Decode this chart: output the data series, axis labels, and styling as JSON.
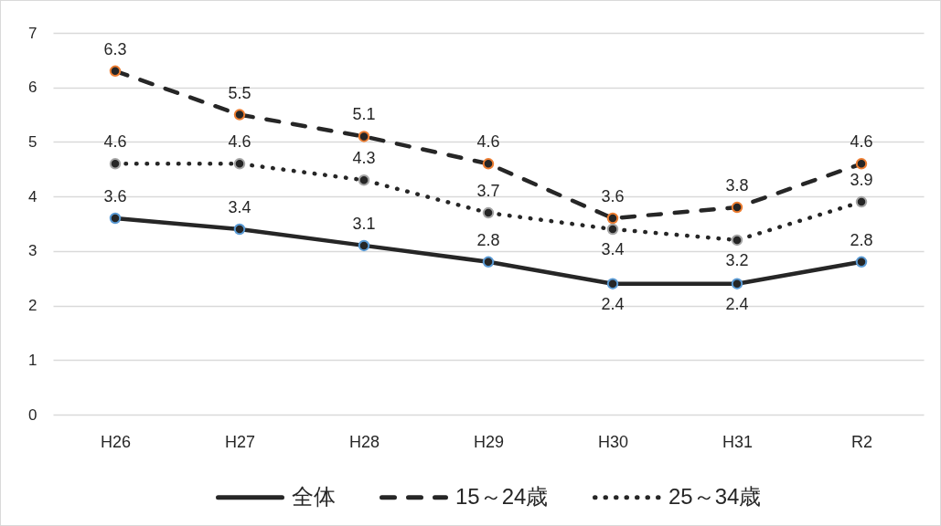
{
  "chart_data": {
    "type": "line",
    "categories": [
      "H26",
      "H27",
      "H28",
      "H29",
      "H30",
      "H31",
      "R2"
    ],
    "series": [
      {
        "name": "全体",
        "color": "#5b9bd5",
        "line_style": "solid",
        "values": [
          3.6,
          3.4,
          3.1,
          2.8,
          2.4,
          2.4,
          2.8
        ]
      },
      {
        "name": "15～24歳",
        "color": "#ed7d31",
        "line_style": "dashed",
        "values": [
          6.3,
          5.5,
          5.1,
          4.6,
          3.6,
          3.8,
          4.6
        ]
      },
      {
        "name": "25～34歳",
        "color": "#a5a5a5",
        "line_style": "dotted",
        "values": [
          4.6,
          4.6,
          4.3,
          3.7,
          3.4,
          3.2,
          3.9
        ]
      }
    ],
    "ylim": [
      0,
      7
    ],
    "yticks": [
      0,
      1,
      2,
      3,
      4,
      5,
      6,
      7
    ],
    "grid": "y",
    "legend": "bottom",
    "marker": "circle",
    "data_labels": true
  }
}
